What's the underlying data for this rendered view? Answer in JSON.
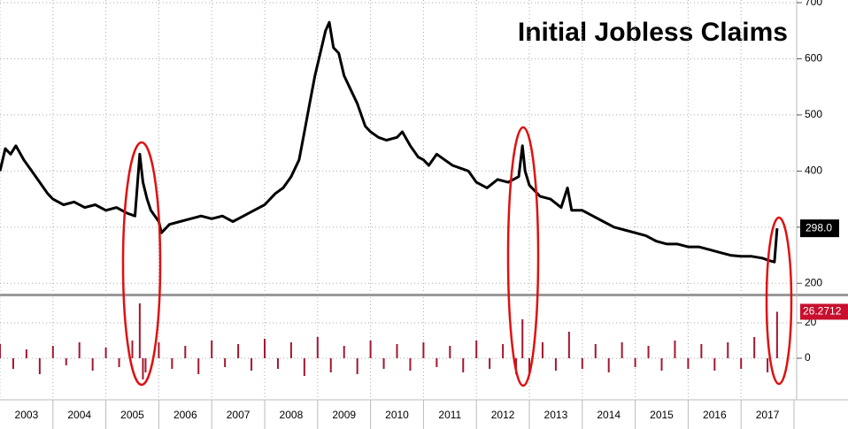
{
  "chart_data": [
    {
      "type": "line",
      "title": "Initial Jobless Claims",
      "xlim": [
        2003,
        2018.05
      ],
      "ylim": [
        180,
        700
      ],
      "yticks": [
        200,
        300,
        400,
        500,
        600,
        700
      ],
      "grid": true,
      "series": [
        {
          "color": "#000000",
          "x": [
            2003.0,
            2003.1,
            2003.2,
            2003.3,
            2003.45,
            2003.6,
            2003.75,
            2003.9,
            2004.0,
            2004.2,
            2004.4,
            2004.6,
            2004.8,
            2005.0,
            2005.2,
            2005.4,
            2005.55,
            2005.64,
            2005.7,
            2005.78,
            2005.85,
            2006.0,
            2006.05,
            2006.2,
            2006.4,
            2006.6,
            2006.8,
            2007.0,
            2007.2,
            2007.4,
            2007.6,
            2007.8,
            2008.0,
            2008.2,
            2008.35,
            2008.5,
            2008.65,
            2008.75,
            2008.85,
            2008.95,
            2009.05,
            2009.15,
            2009.22,
            2009.3,
            2009.4,
            2009.5,
            2009.6,
            2009.75,
            2009.9,
            2010.0,
            2010.15,
            2010.3,
            2010.5,
            2010.6,
            2010.75,
            2010.9,
            2011.0,
            2011.1,
            2011.25,
            2011.4,
            2011.55,
            2011.7,
            2011.85,
            2012.0,
            2012.2,
            2012.4,
            2012.6,
            2012.8,
            2012.87,
            2012.92,
            2013.0,
            2013.2,
            2013.4,
            2013.6,
            2013.72,
            2013.8,
            2014.0,
            2014.2,
            2014.4,
            2014.6,
            2014.8,
            2015.0,
            2015.2,
            2015.4,
            2015.6,
            2015.8,
            2016.0,
            2016.2,
            2016.4,
            2016.6,
            2016.8,
            2017.0,
            2017.2,
            2017.4,
            2017.55,
            2017.63,
            2017.68
          ],
          "values": [
            400,
            440,
            430,
            445,
            420,
            400,
            380,
            360,
            350,
            340,
            345,
            335,
            340,
            330,
            335,
            325,
            320,
            430,
            380,
            350,
            330,
            310,
            290,
            305,
            310,
            315,
            320,
            315,
            320,
            310,
            320,
            330,
            340,
            360,
            370,
            390,
            420,
            470,
            520,
            570,
            610,
            650,
            665,
            620,
            610,
            570,
            550,
            520,
            480,
            470,
            460,
            455,
            460,
            470,
            445,
            425,
            420,
            410,
            430,
            420,
            410,
            405,
            400,
            380,
            370,
            385,
            380,
            390,
            445,
            400,
            375,
            355,
            350,
            335,
            370,
            330,
            330,
            320,
            310,
            300,
            295,
            290,
            285,
            275,
            270,
            270,
            265,
            265,
            260,
            255,
            250,
            248,
            248,
            245,
            240,
            238,
            298
          ],
          "value_labels": [
            null,
            null,
            null,
            null,
            null,
            null,
            null,
            null,
            null,
            null,
            null,
            null,
            null,
            null,
            null,
            null,
            null,
            null,
            null,
            null,
            null,
            null,
            null,
            null,
            null,
            null,
            null,
            null,
            null,
            null,
            null,
            null,
            null,
            null,
            null,
            null,
            null,
            null,
            null,
            null,
            null,
            null,
            null,
            null,
            null,
            null,
            null,
            null,
            null,
            null,
            null,
            null,
            null,
            null,
            null,
            null,
            null,
            null,
            null,
            null,
            null,
            null,
            null,
            null,
            null,
            null,
            null,
            null,
            null,
            null,
            null,
            null,
            null,
            null,
            null,
            null,
            null,
            null,
            null,
            null,
            null,
            null,
            null,
            null,
            null,
            null,
            null,
            null,
            null,
            null,
            null,
            null,
            null,
            null,
            null,
            null,
            "298.0"
          ]
        }
      ]
    },
    {
      "type": "bar",
      "xlim": [
        2003,
        2018.05
      ],
      "xticks": [
        2003,
        2004,
        2005,
        2006,
        2007,
        2008,
        2009,
        2010,
        2011,
        2012,
        2013,
        2014,
        2015,
        2016,
        2017
      ],
      "ylim": [
        -22.5,
        34.5
      ],
      "yticks": [
        0,
        20
      ],
      "grid": true,
      "series": [
        {
          "color": "#a3172f",
          "x": [
            2003.0,
            2003.25,
            2003.5,
            2003.75,
            2004.0,
            2004.25,
            2004.5,
            2004.75,
            2005.0,
            2005.25,
            2005.5,
            2005.64,
            2005.7,
            2005.75,
            2006.0,
            2006.25,
            2006.5,
            2006.75,
            2007.0,
            2007.25,
            2007.5,
            2007.75,
            2008.0,
            2008.25,
            2008.5,
            2008.75,
            2009.0,
            2009.25,
            2009.5,
            2009.75,
            2010.0,
            2010.25,
            2010.5,
            2010.75,
            2011.0,
            2011.25,
            2011.5,
            2011.75,
            2012.0,
            2012.25,
            2012.5,
            2012.75,
            2012.87,
            2013.0,
            2013.25,
            2013.5,
            2013.75,
            2014.0,
            2014.25,
            2014.5,
            2014.75,
            2015.0,
            2015.25,
            2015.5,
            2015.75,
            2016.0,
            2016.25,
            2016.5,
            2016.75,
            2017.0,
            2017.25,
            2017.5,
            2017.68
          ],
          "values": [
            8,
            -6,
            5,
            -9,
            7,
            -4,
            9,
            -7,
            6,
            -5,
            10,
            31,
            -12,
            -8,
            9,
            -6,
            7,
            -9,
            10,
            -5,
            8,
            -7,
            11,
            -6,
            9,
            -10,
            12,
            -8,
            7,
            -9,
            10,
            -6,
            8,
            -7,
            9,
            -5,
            7,
            -8,
            10,
            -6,
            8,
            -9,
            22,
            -10,
            9,
            -7,
            15,
            -6,
            8,
            -8,
            9,
            -5,
            7,
            -7,
            10,
            -6,
            8,
            -7,
            9,
            -6,
            12,
            -8,
            26.2712
          ]
        }
      ]
    }
  ]
}
